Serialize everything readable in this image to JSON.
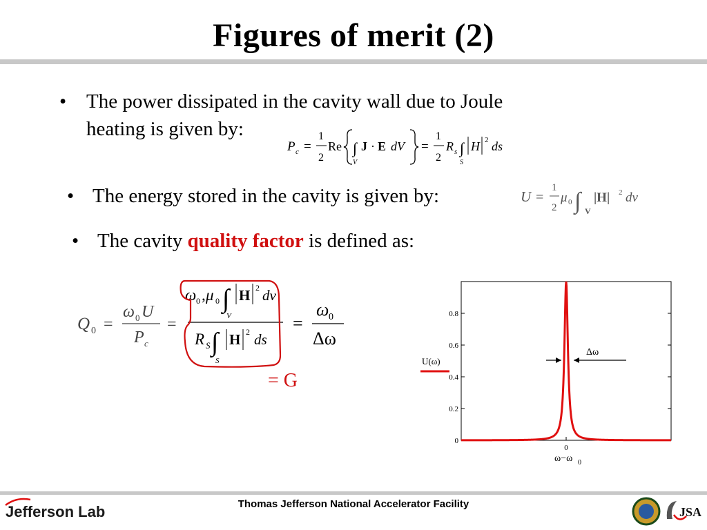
{
  "slide": {
    "title": "Figures of merit (2)"
  },
  "bullets": [
    {
      "marker": "•",
      "text": "The power dissipated in the cavity wall due to Joule",
      "text2": "heating is given by:"
    },
    {
      "marker": "•",
      "text": "The energy stored in the cavity is given by:"
    },
    {
      "marker": "•",
      "pre": "The cavity ",
      "emph": "quality factor",
      "post": " is defined as:"
    }
  ],
  "equations": {
    "power": {
      "lhs": "P",
      "lhs_sub": "c",
      "eq": "=",
      "half_num": "1",
      "half_den": "2",
      "re": "Re",
      "j": "J",
      "dot": "·",
      "e": "E",
      "dv": "dV",
      "vol": "V",
      "rs": "R",
      "rs_sub": "s",
      "h": "H",
      "sq": "2",
      "ds": "ds",
      "surf": "S"
    },
    "energy": {
      "lhs": "U",
      "eq": "=",
      "half_num": "1",
      "half_den": "2",
      "mu": "μ",
      "mu_sub": "0",
      "vol": "V",
      "h": "|H|",
      "sq": "2",
      "dv": "dv"
    },
    "quality": {
      "q": "Q",
      "q_sub": "0",
      "eq": "=",
      "omega": "ω",
      "omega_sub": "0",
      "u": "U",
      "p": "P",
      "p_sub": "c",
      "mu": "μ",
      "mu_sub": "0",
      "h": "H",
      "sq": "2",
      "dv": "dv",
      "vol": "V",
      "rs": "R",
      "rs_sub": "S",
      "ds": "ds",
      "surf": "S",
      "delta": "Δω",
      "comma": ","
    },
    "equals_g": "= G"
  },
  "chart_data": {
    "type": "line",
    "series_label": "U(ω)",
    "xlabel": "ω−ω",
    "xlabel_sub": "0",
    "x_ticks": [
      "0"
    ],
    "y_ticks": [
      "0",
      "0.2",
      "0.4",
      "0.6",
      "0.8"
    ],
    "ylim": [
      0,
      1.0
    ],
    "xlim": [
      -10,
      10
    ],
    "annotation": "Δω",
    "peak": {
      "x0": 0,
      "height": 1.0,
      "half_width": 0.2
    },
    "color": "#e01010"
  },
  "footer": {
    "org": "Thomas Jefferson National Accelerator Facility",
    "logo_text": "Jefferson Lab",
    "jsa_text": "JSA"
  }
}
